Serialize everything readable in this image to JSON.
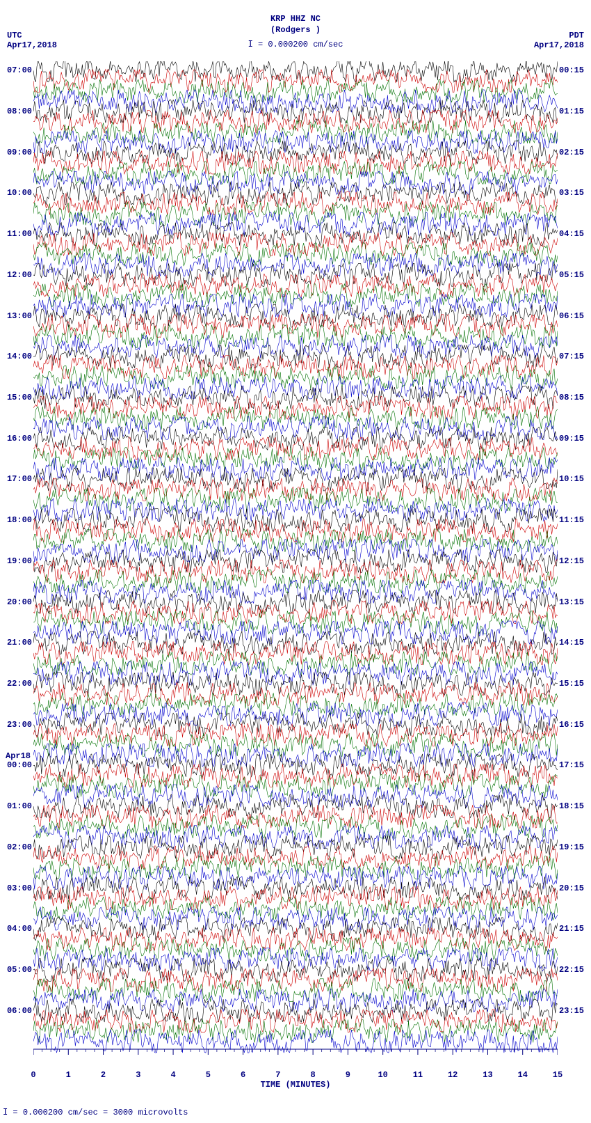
{
  "header": {
    "station_line": "KRP HHZ NC",
    "location_line": "(Rodgers )",
    "scale_marker": "𝙸 = 0.000200 cm/sec",
    "tz_left_label": "UTC",
    "tz_right_label": "PDT",
    "date_left": "Apr17,2018",
    "date_right": "Apr17,2018"
  },
  "footer": {
    "x_axis_label": "TIME (MINUTES)",
    "scale_note": "𝙸 = 0.000200 cm/sec =   3000 microvolts"
  },
  "plot": {
    "type": "helicorder",
    "background_color": "#ffffff",
    "text_color": "#000080",
    "font_family": "Courier New, monospace",
    "title_fontsize": 13,
    "label_fontsize": 12,
    "trace_line_width": 0.6,
    "trace_amplitude_overlap": 1.6,
    "x_axis": {
      "min": 0,
      "max": 15,
      "tick_step": 1,
      "minor_ticks_per_major": 4,
      "ticks": [
        0,
        1,
        2,
        3,
        4,
        5,
        6,
        7,
        8,
        9,
        10,
        11,
        12,
        13,
        14,
        15
      ]
    },
    "trace_colors_cycle": [
      "#000000",
      "#cc0000",
      "#007000",
      "#0000cc"
    ],
    "line_interval_minutes": 15,
    "left_time_labels": [
      {
        "row": 0,
        "text": "07:00"
      },
      {
        "row": 4,
        "text": "08:00"
      },
      {
        "row": 8,
        "text": "09:00"
      },
      {
        "row": 12,
        "text": "10:00"
      },
      {
        "row": 16,
        "text": "11:00"
      },
      {
        "row": 20,
        "text": "12:00"
      },
      {
        "row": 24,
        "text": "13:00"
      },
      {
        "row": 28,
        "text": "14:00"
      },
      {
        "row": 32,
        "text": "15:00"
      },
      {
        "row": 36,
        "text": "16:00"
      },
      {
        "row": 40,
        "text": "17:00"
      },
      {
        "row": 44,
        "text": "18:00"
      },
      {
        "row": 48,
        "text": "19:00"
      },
      {
        "row": 52,
        "text": "20:00"
      },
      {
        "row": 56,
        "text": "21:00"
      },
      {
        "row": 60,
        "text": "22:00"
      },
      {
        "row": 64,
        "text": "23:00"
      },
      {
        "row": 68,
        "text": "00:00",
        "date_above": "Apr18"
      },
      {
        "row": 72,
        "text": "01:00"
      },
      {
        "row": 76,
        "text": "02:00"
      },
      {
        "row": 80,
        "text": "03:00"
      },
      {
        "row": 84,
        "text": "04:00"
      },
      {
        "row": 88,
        "text": "05:00"
      },
      {
        "row": 92,
        "text": "06:00"
      }
    ],
    "right_time_labels": [
      {
        "row": 0,
        "text": "00:15"
      },
      {
        "row": 4,
        "text": "01:15"
      },
      {
        "row": 8,
        "text": "02:15"
      },
      {
        "row": 12,
        "text": "03:15"
      },
      {
        "row": 16,
        "text": "04:15"
      },
      {
        "row": 20,
        "text": "05:15"
      },
      {
        "row": 24,
        "text": "06:15"
      },
      {
        "row": 28,
        "text": "07:15"
      },
      {
        "row": 32,
        "text": "08:15"
      },
      {
        "row": 36,
        "text": "09:15"
      },
      {
        "row": 40,
        "text": "10:15"
      },
      {
        "row": 44,
        "text": "11:15"
      },
      {
        "row": 48,
        "text": "12:15"
      },
      {
        "row": 52,
        "text": "13:15"
      },
      {
        "row": 56,
        "text": "14:15"
      },
      {
        "row": 60,
        "text": "15:15"
      },
      {
        "row": 64,
        "text": "16:15"
      },
      {
        "row": 68,
        "text": "17:15"
      },
      {
        "row": 72,
        "text": "18:15"
      },
      {
        "row": 76,
        "text": "19:15"
      },
      {
        "row": 80,
        "text": "20:15"
      },
      {
        "row": 84,
        "text": "21:15"
      },
      {
        "row": 88,
        "text": "22:15"
      },
      {
        "row": 92,
        "text": "23:15"
      }
    ],
    "n_rows": 96,
    "samples_per_row": 900,
    "noise_amplitude": 1.0,
    "noise_seed": 20180417
  }
}
